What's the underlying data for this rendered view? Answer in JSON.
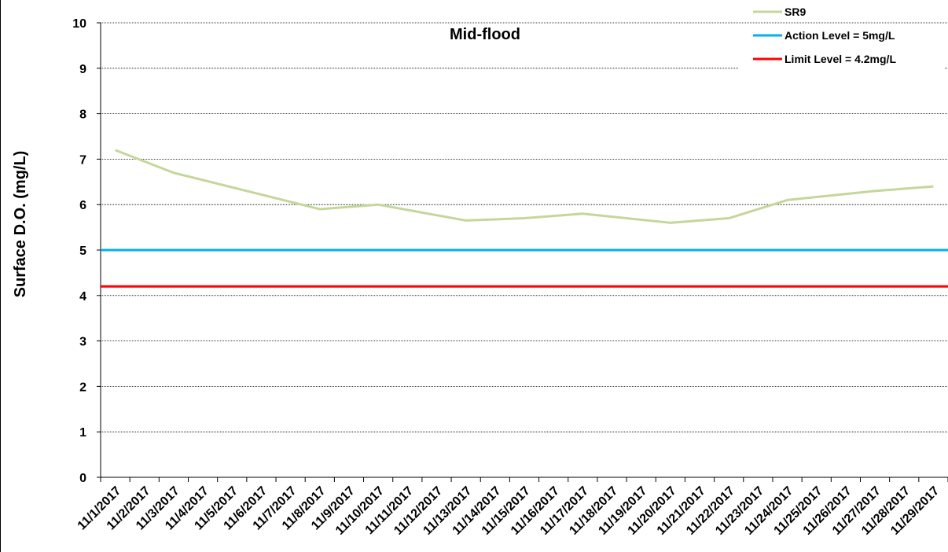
{
  "chart_data": {
    "type": "line",
    "title": "Mid-flood",
    "xlabel": "",
    "ylabel": "Surface D.O. (mg/L)",
    "ylim": [
      0,
      10
    ],
    "yticks": [
      "0",
      "1",
      "2",
      "3",
      "4",
      "5",
      "6",
      "7",
      "8",
      "9",
      "10"
    ],
    "categories": [
      "11/1/2017",
      "11/2/2017",
      "11/3/2017",
      "11/4/2017",
      "11/5/2017",
      "11/6/2017",
      "11/7/2017",
      "11/8/2017",
      "11/9/2017",
      "11/10/2017",
      "11/11/2017",
      "11/12/2017",
      "11/13/2017",
      "11/14/2017",
      "11/15/2017",
      "11/16/2017",
      "11/17/2017",
      "11/18/2017",
      "11/19/2017",
      "11/20/2017",
      "11/21/2017",
      "11/22/2017",
      "11/23/2017",
      "11/24/2017",
      "11/25/2017",
      "11/26/2017",
      "11/27/2017",
      "11/28/2017",
      "11/29/2017"
    ],
    "grid": true,
    "legend_position": "top-right",
    "series": [
      {
        "name": "SR9",
        "color": "#c4d79b",
        "kind": "data",
        "points": [
          {
            "x": "11/1/2017",
            "y": 7.2
          },
          {
            "x": "11/3/2017",
            "y": 6.7
          },
          {
            "x": "11/8/2017",
            "y": 5.9
          },
          {
            "x": "11/10/2017",
            "y": 6.0
          },
          {
            "x": "11/13/2017",
            "y": 5.65
          },
          {
            "x": "11/15/2017",
            "y": 5.7
          },
          {
            "x": "11/17/2017",
            "y": 5.8
          },
          {
            "x": "11/20/2017",
            "y": 5.6
          },
          {
            "x": "11/22/2017",
            "y": 5.7
          },
          {
            "x": "11/24/2017",
            "y": 6.1
          },
          {
            "x": "11/27/2017",
            "y": 6.3
          },
          {
            "x": "11/29/2017",
            "y": 6.4
          }
        ]
      },
      {
        "name": "Action Level = 5mg/L",
        "color": "#00b0f0",
        "kind": "reference",
        "value": 5
      },
      {
        "name": "Limit Level = 4.2mg/L",
        "color": "#ff0000",
        "kind": "reference",
        "value": 4.2
      }
    ]
  }
}
